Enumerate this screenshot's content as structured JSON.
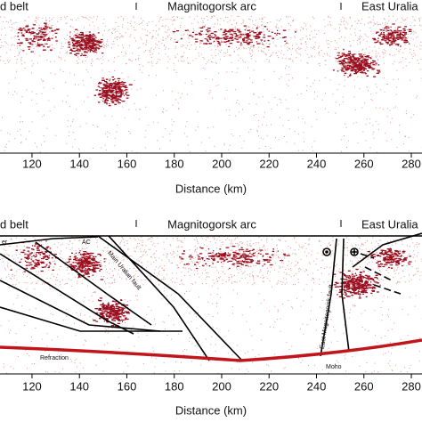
{
  "chart_data": [
    {
      "type": "image",
      "regions": [
        "d belt",
        "Magnitogorsk arc",
        "East Uralia"
      ],
      "xlabel": "Distance (km)",
      "xlim": [
        106.5,
        284.5
      ],
      "xticks": [
        120,
        140,
        160,
        180,
        200,
        220,
        240,
        260,
        280
      ]
    },
    {
      "type": "image",
      "regions": [
        "d belt",
        "Magnitogorsk arc",
        "East Uralia"
      ],
      "xlabel": "Distance (km)",
      "xlim": [
        106.5,
        284.5
      ],
      "xticks": [
        120,
        140,
        160,
        180,
        200,
        220,
        240,
        260,
        280
      ],
      "annotations": [
        "er",
        "AC",
        "Main Uralian fault",
        "East Magnitogorsk fault",
        "Refraction",
        "Moho"
      ]
    }
  ]
}
